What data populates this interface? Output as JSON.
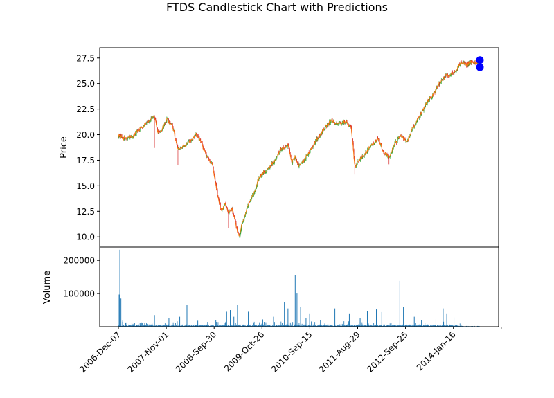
{
  "chart_data": [
    {
      "type": "candlestick",
      "title": "FTDS Candlestick Chart with Predictions",
      "ylabel": "Price",
      "ylim": [
        9.0,
        28.5
      ],
      "yticks": [
        "10.0",
        "12.5",
        "15.0",
        "17.5",
        "20.0",
        "22.5",
        "25.0",
        "27.5"
      ],
      "colors": {
        "up": "#2ca02c",
        "down": "#d62728",
        "line": "#ff7f0e",
        "prediction": "#0000ff"
      },
      "price_anchors": [
        [
          0,
          19.9
        ],
        [
          0.02,
          19.6
        ],
        [
          0.04,
          19.8
        ],
        [
          0.06,
          20.6
        ],
        [
          0.08,
          21.3
        ],
        [
          0.1,
          21.7
        ],
        [
          0.11,
          20.2
        ],
        [
          0.12,
          20.5
        ],
        [
          0.135,
          21.5
        ],
        [
          0.15,
          20.8
        ],
        [
          0.165,
          18.5
        ],
        [
          0.18,
          18.8
        ],
        [
          0.2,
          19.4
        ],
        [
          0.215,
          20.0
        ],
        [
          0.23,
          19.2
        ],
        [
          0.245,
          17.8
        ],
        [
          0.26,
          17.2
        ],
        [
          0.275,
          14.0
        ],
        [
          0.285,
          12.6
        ],
        [
          0.295,
          13.2
        ],
        [
          0.305,
          12.4
        ],
        [
          0.315,
          12.8
        ],
        [
          0.325,
          11.2
        ],
        [
          0.335,
          10.1
        ],
        [
          0.345,
          11.6
        ],
        [
          0.36,
          13.2
        ],
        [
          0.375,
          14.2
        ],
        [
          0.39,
          15.9
        ],
        [
          0.41,
          16.5
        ],
        [
          0.43,
          17.3
        ],
        [
          0.45,
          18.6
        ],
        [
          0.47,
          19.0
        ],
        [
          0.48,
          17.3
        ],
        [
          0.49,
          17.8
        ],
        [
          0.5,
          16.9
        ],
        [
          0.515,
          17.5
        ],
        [
          0.53,
          18.4
        ],
        [
          0.55,
          19.6
        ],
        [
          0.57,
          20.6
        ],
        [
          0.59,
          21.4
        ],
        [
          0.61,
          21.0
        ],
        [
          0.63,
          21.3
        ],
        [
          0.645,
          20.7
        ],
        [
          0.655,
          16.9
        ],
        [
          0.665,
          17.4
        ],
        [
          0.68,
          18.0
        ],
        [
          0.7,
          18.9
        ],
        [
          0.72,
          19.7
        ],
        [
          0.735,
          18.3
        ],
        [
          0.75,
          17.8
        ],
        [
          0.765,
          19.0
        ],
        [
          0.78,
          19.9
        ],
        [
          0.8,
          19.3
        ],
        [
          0.815,
          20.6
        ],
        [
          0.83,
          21.6
        ],
        [
          0.845,
          22.5
        ],
        [
          0.86,
          23.4
        ],
        [
          0.875,
          24.1
        ],
        [
          0.89,
          25.1
        ],
        [
          0.905,
          25.7
        ],
        [
          0.92,
          25.9
        ],
        [
          0.935,
          26.3
        ],
        [
          0.95,
          27.1
        ],
        [
          0.965,
          26.8
        ],
        [
          0.975,
          27.1
        ],
        [
          1.0,
          27.1
        ]
      ],
      "predictions": [
        27.3,
        26.6
      ]
    },
    {
      "type": "bar",
      "ylabel": "Volume",
      "ylim": [
        0,
        240000
      ],
      "yticks": [
        "100000",
        "200000"
      ],
      "color": "#1f77b4",
      "x_tick_labels": [
        "2006-Dec-07",
        "2007-Nov-01",
        "2008-Sep-30",
        "2009-Oct-26",
        "2010-Sep-15",
        "2011-Aug-29",
        "2012-Sep-25",
        "2014-Jan-16"
      ],
      "volume_spikes": [
        [
          0.002,
          97000
        ],
        [
          0.004,
          232000
        ],
        [
          0.007,
          85000
        ],
        [
          0.012,
          20000
        ],
        [
          0.06,
          12000
        ],
        [
          0.1,
          35000
        ],
        [
          0.14,
          25000
        ],
        [
          0.17,
          30000
        ],
        [
          0.19,
          65000
        ],
        [
          0.22,
          18000
        ],
        [
          0.27,
          20000
        ],
        [
          0.3,
          45000
        ],
        [
          0.31,
          50000
        ],
        [
          0.32,
          30000
        ],
        [
          0.33,
          65000
        ],
        [
          0.36,
          45000
        ],
        [
          0.4,
          22000
        ],
        [
          0.43,
          30000
        ],
        [
          0.46,
          75000
        ],
        [
          0.47,
          55000
        ],
        [
          0.49,
          155000
        ],
        [
          0.495,
          100000
        ],
        [
          0.505,
          60000
        ],
        [
          0.52,
          25000
        ],
        [
          0.53,
          40000
        ],
        [
          0.56,
          20000
        ],
        [
          0.6,
          55000
        ],
        [
          0.64,
          40000
        ],
        [
          0.67,
          25000
        ],
        [
          0.69,
          48000
        ],
        [
          0.715,
          52000
        ],
        [
          0.73,
          44000
        ],
        [
          0.78,
          138000
        ],
        [
          0.79,
          60000
        ],
        [
          0.82,
          30000
        ],
        [
          0.84,
          20000
        ],
        [
          0.88,
          22000
        ],
        [
          0.9,
          55000
        ],
        [
          0.91,
          40000
        ],
        [
          0.93,
          28000
        ]
      ]
    }
  ]
}
